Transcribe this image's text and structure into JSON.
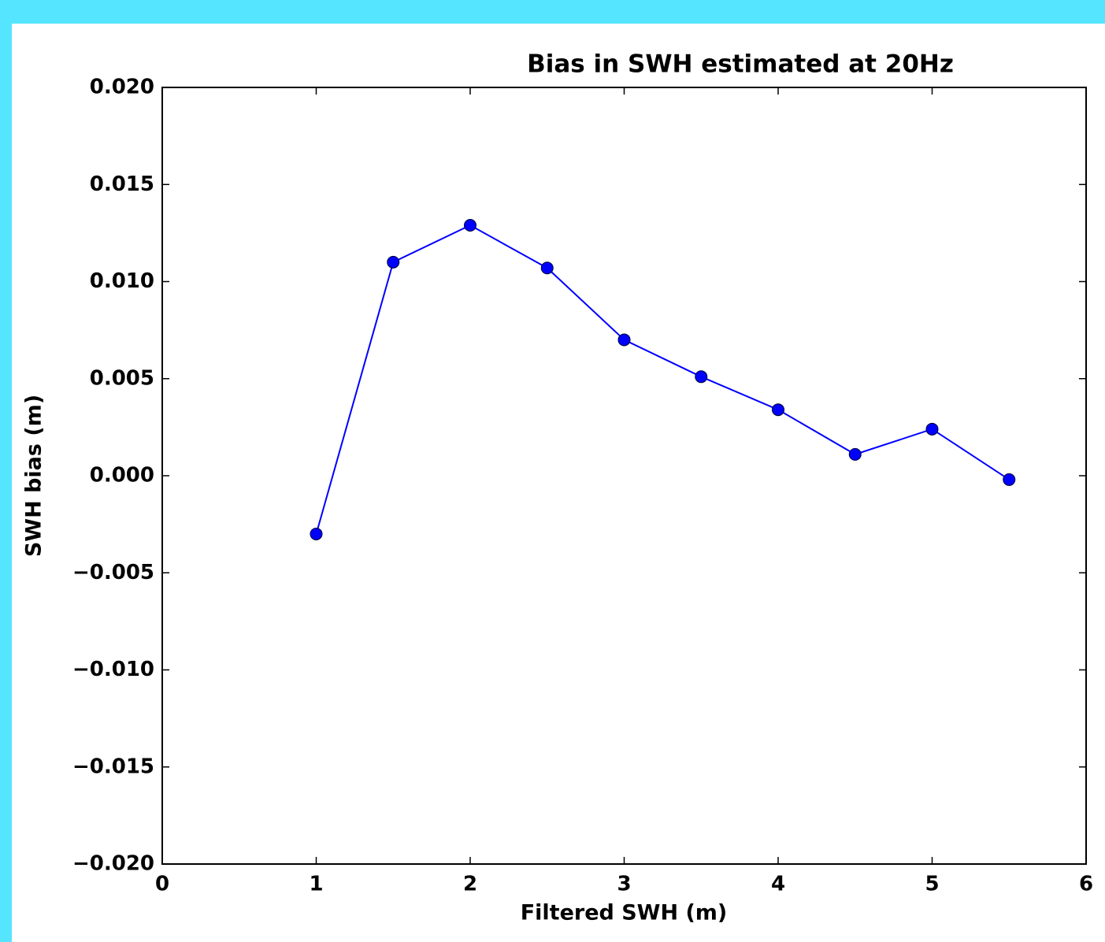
{
  "chart_data": {
    "type": "line",
    "title": "Bias in SWH estimated at 20Hz",
    "x_label": "Filtered SWH (m)",
    "y_label": "SWH bias (m)",
    "x": [
      1,
      1.5,
      2,
      2.5,
      3,
      3.5,
      4,
      4.5,
      5,
      5.5
    ],
    "series": [
      {
        "color": "#0000ff",
        "values": [
          -0.003,
          0.011,
          0.0129,
          0.0107,
          0.007,
          0.0051,
          0.0034,
          0.0011,
          0.0024,
          -0.0002
        ]
      }
    ],
    "xlim": [
      0,
      6
    ],
    "xticks": [
      0,
      1,
      2,
      3,
      4,
      5,
      6
    ],
    "ylim": [
      -0.02,
      0.02
    ],
    "yticks": [
      {
        "value": -0.02,
        "label": "−0.020"
      },
      {
        "value": -0.015,
        "label": "−0.015"
      },
      {
        "value": -0.01,
        "label": "−0.010"
      },
      {
        "value": -0.005,
        "label": "−0.005"
      },
      {
        "value": 0,
        "label": "0.000"
      },
      {
        "value": 0.005,
        "label": "0.005"
      },
      {
        "value": 0.01,
        "label": "0.010"
      },
      {
        "value": 0.015,
        "label": "0.015"
      },
      {
        "value": 0.02,
        "label": "0.020"
      }
    ],
    "grid": false
  }
}
